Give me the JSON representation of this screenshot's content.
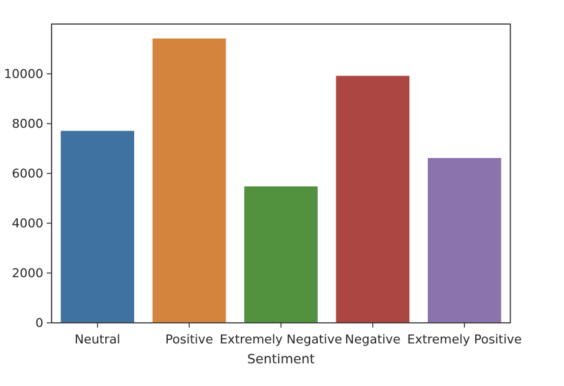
{
  "chart_data": {
    "type": "bar",
    "title": "",
    "xlabel": "Sentiment",
    "ylabel": "",
    "ylim": [
      0,
      12000
    ],
    "yticks": [
      0,
      2000,
      4000,
      6000,
      8000,
      10000
    ],
    "grid": false,
    "categories": [
      "Neutral",
      "Positive",
      "Extremely Negative",
      "Negative",
      "Extremely Positive"
    ],
    "values": [
      7710,
      11420,
      5480,
      9920,
      6620
    ],
    "colors": [
      "#3f729e",
      "#d4843d",
      "#52923f",
      "#ab4642",
      "#8b73ad"
    ]
  }
}
